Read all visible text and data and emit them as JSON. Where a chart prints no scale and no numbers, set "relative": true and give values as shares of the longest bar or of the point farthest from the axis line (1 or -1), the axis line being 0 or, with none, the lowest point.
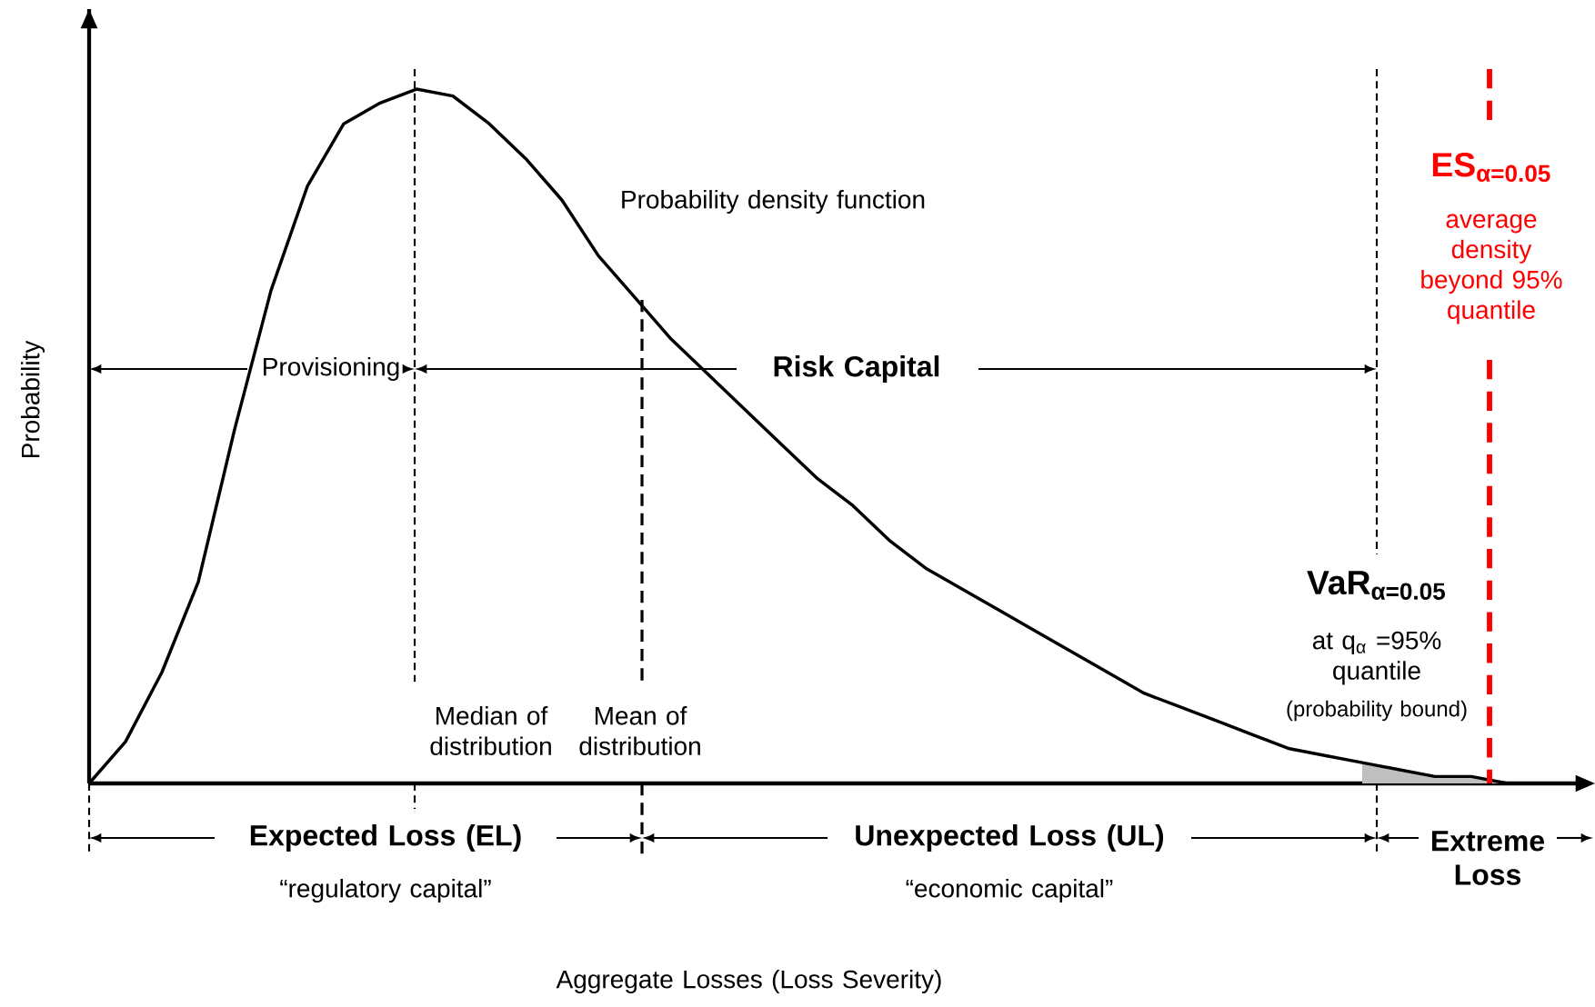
{
  "chart_data": {
    "type": "line",
    "relative": true,
    "ylabel": "Probability",
    "categories": [
      null,
      null,
      null,
      null,
      null,
      null,
      null,
      null,
      null,
      null,
      null,
      null,
      null,
      null,
      null,
      null,
      null,
      null,
      null,
      null,
      null,
      null,
      null,
      null,
      null,
      null,
      null,
      null,
      null,
      null,
      null,
      null,
      null,
      null,
      null,
      null,
      null,
      null,
      null,
      null,
      null,
      null
    ],
    "series": [
      {
        "type": "area",
        "color": "#bfbfbf",
        "values": [
          null,
          null,
          null,
          null,
          null,
          null,
          null,
          null,
          null,
          null,
          null,
          null,
          null,
          null,
          null,
          null,
          null,
          null,
          null,
          null,
          null,
          null,
          null,
          null,
          null,
          null,
          null,
          null,
          null,
          null,
          null,
          null,
          null,
          null,
          null,
          0.03,
          0.02,
          0.01,
          0.01,
          0,
          null,
          null
        ]
      },
      {
        "color": "#000000",
        "values": [
          0,
          0.06,
          0.16,
          0.29,
          0.51,
          0.71,
          0.86,
          0.95,
          0.98,
          1.0,
          0.99,
          0.95,
          0.9,
          0.84,
          0.76,
          0.7,
          0.64,
          0.59,
          0.54,
          0.49,
          0.44,
          0.4,
          0.35,
          0.31,
          0.28,
          0.25,
          0.22,
          0.19,
          0.16,
          0.13,
          0.11,
          0.09,
          0.07,
          0.05,
          0.04,
          0.03,
          0.02,
          0.01,
          0.01,
          0,
          0,
          0
        ]
      }
    ],
    "annotations": [
      "Probability density function",
      "Provisioning",
      "Risk Capital",
      "at q$_{α}$ =95% quantile",
      "(probability bound)",
      "average density beyond 95% quantile",
      "Expected Loss (EL)",
      "“regulatory capital”",
      "Unexpected Loss (UL)",
      "“economic capital”",
      "Extreme Loss",
      "Median of distribution",
      "Mean of distribution",
      "VaR$_{α=0.05}$",
      "ES$_{α=0.05}$",
      "Aggregate Losses (Loss Severity)"
    ]
  }
}
